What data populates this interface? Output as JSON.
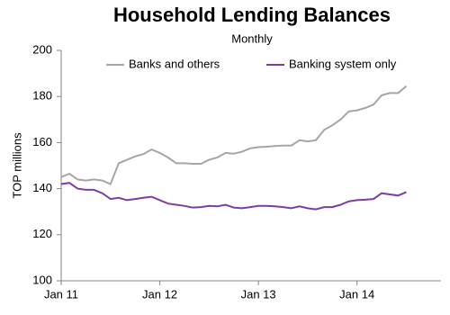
{
  "chart_data": {
    "type": "line",
    "title": "Household Lending Balances",
    "subtitle": "Monthly",
    "y_label": "TOP millions",
    "categories": [
      "Jan 11",
      null,
      null,
      null,
      null,
      null,
      null,
      null,
      null,
      null,
      null,
      null,
      "Jan 12",
      null,
      null,
      null,
      null,
      null,
      null,
      null,
      null,
      null,
      null,
      null,
      "Jan 13",
      null,
      null,
      null,
      null,
      null,
      null,
      null,
      null,
      null,
      null,
      null,
      "Jan 14",
      null,
      null,
      null,
      null,
      null,
      null
    ],
    "series": [
      {
        "name": "Banks and others",
        "color": "#a6a6a6",
        "values": [
          145,
          146.5,
          144,
          143.5,
          144,
          143.5,
          142,
          151,
          152.5,
          154,
          155,
          157,
          155.5,
          153.5,
          151,
          151,
          150.8,
          150.8,
          152.5,
          153.5,
          155.5,
          155.2,
          156,
          157.5,
          158,
          158.2,
          158.5,
          158.7,
          158.7,
          161,
          160.5,
          161,
          165.5,
          167.5,
          170,
          173.5,
          174,
          175,
          176.5,
          180.5,
          181.5,
          181.5,
          184.5
        ]
      },
      {
        "name": "Banking system only",
        "color": "#7b3fa0",
        "values": [
          142,
          142.5,
          140,
          139.5,
          139.5,
          138,
          135.5,
          136,
          135,
          135.5,
          136,
          136.5,
          135,
          133.5,
          133,
          132.5,
          131.8,
          132,
          132.5,
          132.3,
          133,
          131.8,
          131.5,
          132,
          132.5,
          132.5,
          132.3,
          132,
          131.5,
          132.3,
          131.5,
          131,
          132,
          132,
          133,
          134.5,
          135,
          135.2,
          135.5,
          138,
          137.5,
          137,
          138.5
        ]
      }
    ],
    "ylim": [
      100,
      200
    ],
    "yticks": [
      100,
      120,
      140,
      160,
      180,
      200
    ],
    "legend": "top"
  }
}
